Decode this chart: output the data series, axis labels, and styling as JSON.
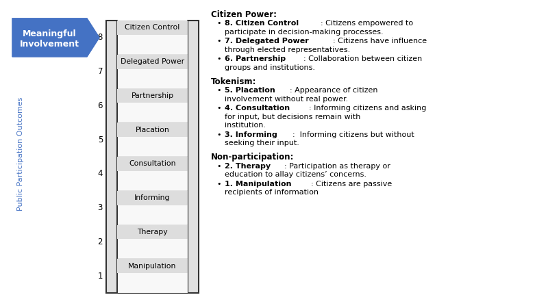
{
  "rungs": [
    "Citizen Control",
    "Delegated Power",
    "Partnership",
    "Placation",
    "Consultation",
    "Informing",
    "Therapy",
    "Manipulation"
  ],
  "rung_numbers": [
    8,
    7,
    6,
    5,
    4,
    3,
    2,
    1
  ],
  "arrow_label_line1": "Meaningful",
  "arrow_label_line2": "Involvement",
  "arrow_color": "#4472C4",
  "arrow_text_color": "#FFFFFF",
  "ylabel": "Public Participation Outcomes",
  "ylabel_color": "#4472C4",
  "text_color_black": "#000000",
  "text_color_blue": "#4472C4",
  "bg_color": "#FFFFFF",
  "ladder_border": "#333333",
  "rung_label_bg": "#E8E8E8",
  "sections": [
    {
      "title": "Citizen Power:",
      "items": [
        {
          "bold": "8. Citizen Control",
          "rest_lines": [
            ": Citizens empowered to",
            "participate in decision-making processes."
          ]
        },
        {
          "bold": "7. Delegated Power",
          "rest_lines": [
            ": Citizens have influence",
            "through elected representatives."
          ]
        },
        {
          "bold": "6. Partnership",
          "rest_lines": [
            ": Collaboration between citizen",
            "groups and institutions."
          ]
        }
      ]
    },
    {
      "title": "Tokenism:",
      "items": [
        {
          "bold": "5. Placation",
          "rest_lines": [
            ": Appearance of citizen",
            "involvement without real power."
          ]
        },
        {
          "bold": "4. Consultation",
          "rest_lines": [
            ": Informing citizens and asking",
            "for input, but decisions remain with",
            "institution."
          ]
        },
        {
          "bold": "3. Informing",
          "rest_lines": [
            ":  Informing citizens but without",
            "seeking their input."
          ]
        }
      ]
    },
    {
      "title": "Non-participation:",
      "items": [
        {
          "bold": "2. Therapy",
          "rest_lines": [
            ": Participation as therapy or",
            "education to allay citizens’ concerns."
          ]
        },
        {
          "bold": "1. Manipulation",
          "rest_lines": [
            ": Citizens are passive",
            "recipients of information"
          ]
        }
      ]
    }
  ]
}
